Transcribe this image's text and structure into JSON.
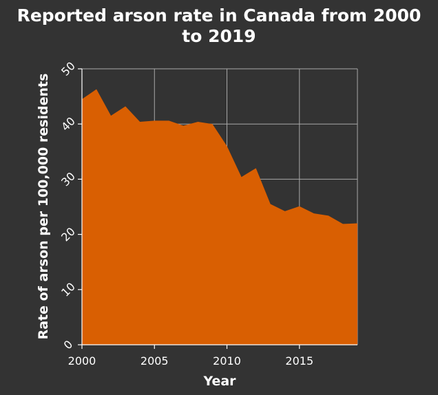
{
  "chart_data": {
    "type": "area",
    "title_lines": [
      "Reported arson rate in Canada from 2000",
      "to 2019"
    ],
    "xlabel": "Year",
    "ylabel": "Rate of arson per 100,000 residents",
    "x": [
      2000,
      2001,
      2002,
      2003,
      2004,
      2005,
      2006,
      2007,
      2008,
      2009,
      2010,
      2011,
      2012,
      2013,
      2014,
      2015,
      2016,
      2017,
      2018,
      2019
    ],
    "values": [
      44.5,
      46.3,
      41.5,
      43.2,
      40.4,
      40.6,
      40.6,
      39.7,
      40.4,
      40.0,
      36.0,
      30.4,
      32.0,
      25.5,
      24.2,
      25.1,
      23.8,
      23.4,
      21.9,
      22.0
    ],
    "xlim": [
      2000,
      2019
    ],
    "ylim": [
      0,
      50
    ],
    "xticks": [
      2000,
      2005,
      2010,
      2015
    ],
    "yticks": [
      0,
      10,
      20,
      30,
      40,
      50
    ],
    "grid": true,
    "fill_color": "#d95f02",
    "background_color": "#333333",
    "grid_color": "#a9a9a9"
  }
}
